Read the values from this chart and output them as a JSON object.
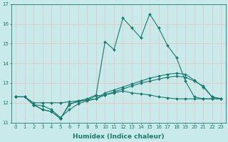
{
  "xlabel": "Humidex (Indice chaleur)",
  "x": [
    0,
    1,
    2,
    3,
    4,
    5,
    6,
    7,
    8,
    9,
    10,
    11,
    12,
    13,
    14,
    15,
    16,
    17,
    18,
    19,
    20,
    21,
    22,
    23
  ],
  "line1": [
    12.3,
    12.3,
    11.9,
    11.85,
    11.65,
    11.25,
    11.65,
    11.95,
    12.1,
    12.2,
    12.5,
    12.65,
    12.8,
    12.95,
    13.1,
    13.25,
    13.35,
    13.45,
    13.5,
    13.45,
    13.15,
    12.8,
    12.3,
    12.2
  ],
  "line2": [
    12.3,
    12.3,
    12.0,
    12.0,
    12.0,
    12.0,
    12.05,
    12.1,
    12.15,
    12.2,
    12.4,
    12.55,
    12.7,
    12.85,
    13.0,
    13.1,
    13.2,
    13.3,
    13.35,
    13.3,
    13.1,
    12.85,
    12.3,
    12.2
  ],
  "line3": [
    12.3,
    12.3,
    11.9,
    11.65,
    11.55,
    11.2,
    11.9,
    12.1,
    12.2,
    12.4,
    15.1,
    14.7,
    16.3,
    15.8,
    15.3,
    16.5,
    15.8,
    14.9,
    14.3,
    13.1,
    12.3,
    12.2,
    12.2,
    12.2
  ],
  "line4": [
    12.3,
    12.3,
    11.9,
    11.65,
    11.55,
    11.2,
    11.95,
    12.05,
    12.15,
    12.35,
    12.4,
    12.5,
    12.6,
    12.5,
    12.45,
    12.4,
    12.3,
    12.25,
    12.2,
    12.2,
    12.2,
    12.2,
    12.2,
    12.2
  ],
  "line_color": "#1a7a6e",
  "bg_color": "#c8eaea",
  "grid_color": "#e8c8c8",
  "ylim": [
    11.0,
    17.0
  ],
  "yticks": [
    11,
    12,
    13,
    14,
    15,
    16,
    17
  ],
  "markersize": 2.0,
  "linewidth": 0.8
}
